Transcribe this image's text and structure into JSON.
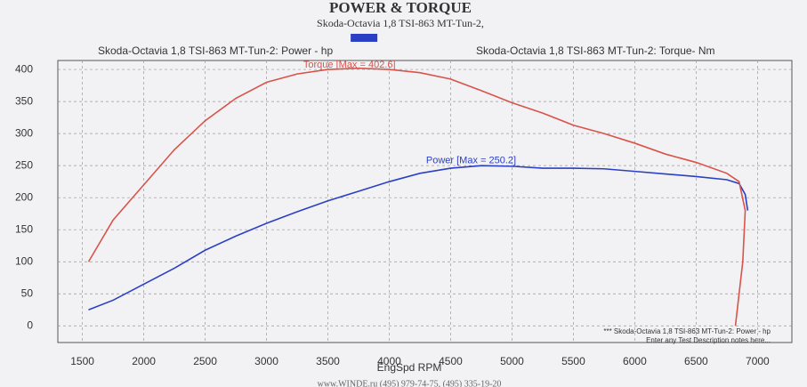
{
  "chart_data": {
    "type": "line",
    "title": "POWER & TORQUE",
    "subtitle": "Skoda-Octavia 1,8 TSI-863 MT-Tun-2,",
    "x_label": "EngSpd  RPM",
    "xlim": [
      1300,
      7280
    ],
    "ylim": [
      -26,
      414
    ],
    "xticks": [
      1500,
      2000,
      2500,
      3000,
      3500,
      4000,
      4500,
      5000,
      5500,
      6000,
      6500,
      7000
    ],
    "yticks": [
      0,
      50,
      100,
      150,
      200,
      250,
      300,
      350,
      400
    ],
    "grid": true,
    "series": [
      {
        "name": "Skoda-Octavia 1,8 TSI-863 MT-Tun-2: Power -  hp",
        "color": "#2b3fc4",
        "x": [
          1550,
          1750,
          2000,
          2250,
          2500,
          2750,
          3000,
          3250,
          3500,
          3750,
          4000,
          4250,
          4500,
          4750,
          5000,
          5250,
          5500,
          5750,
          6000,
          6250,
          6500,
          6750,
          6850,
          6900,
          6920
        ],
        "values": [
          25,
          40,
          65,
          90,
          118,
          140,
          160,
          178,
          195,
          210,
          225,
          238,
          246,
          250,
          249,
          246,
          246,
          245,
          241,
          237,
          233,
          228,
          222,
          205,
          180
        ]
      },
      {
        "name": "Skoda-Octavia 1,8 TSI-863 MT-Tun-2: Torque-  Nm",
        "color": "#d9534a",
        "x": [
          1550,
          1750,
          2000,
          2250,
          2500,
          2750,
          3000,
          3250,
          3500,
          3750,
          4000,
          4250,
          4500,
          4750,
          5000,
          5250,
          5500,
          5750,
          6000,
          6250,
          6500,
          6750,
          6850,
          6900,
          6880,
          6820
        ],
        "values": [
          100,
          165,
          220,
          275,
          320,
          355,
          380,
          393,
          400,
          402,
          400,
          395,
          385,
          367,
          348,
          332,
          313,
          300,
          285,
          268,
          255,
          238,
          225,
          180,
          100,
          0
        ]
      }
    ],
    "annotations": [
      {
        "text": "Torque [Max = 402.6]",
        "x": 3300,
        "y": 407,
        "color": "#d9534a"
      },
      {
        "text": "Power  [Max = 250.2]",
        "x": 4300,
        "y": 258,
        "color": "#2b3fc4"
      }
    ],
    "notes": [
      "*** Skoda-Octavia 1,8 TSI-863 MT-Tun-2: Power -  hp",
      "Enter any Test Description notes here..."
    ],
    "footer": "www.WINDE.ru  (495) 979-74-75,  (495) 335-19-20"
  }
}
